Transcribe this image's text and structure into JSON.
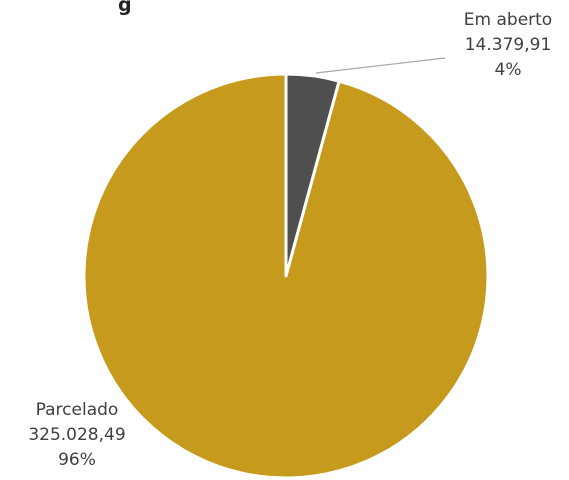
{
  "title_fragment": "g",
  "chart_data": {
    "type": "pie",
    "slices": [
      {
        "label": "Em aberto",
        "value": 14379.91,
        "value_text": "14.379,91",
        "percent_text": "4%",
        "color": "#4f4f4f"
      },
      {
        "label": "Parcelado",
        "value": 325028.49,
        "value_text": "325.028,49",
        "percent_text": "96%",
        "color": "#c59a1d"
      }
    ]
  }
}
